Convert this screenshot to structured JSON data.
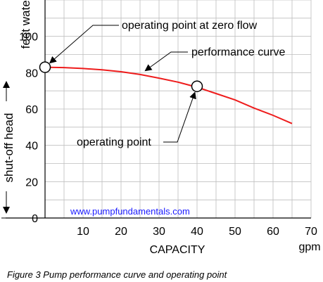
{
  "chart_data": {
    "type": "line",
    "title": "",
    "xlabel": "CAPACITY",
    "x_unit": "gpm",
    "ylabel_unit": "feet water",
    "side_label": "shut-off head",
    "xlim": [
      0,
      70
    ],
    "ylim": [
      0,
      120
    ],
    "x_ticks": [
      10,
      20,
      30,
      40,
      50,
      60,
      70
    ],
    "y_ticks": [
      0,
      20,
      40,
      60,
      80,
      100
    ],
    "grid": true,
    "series": [
      {
        "x": [
          0,
          5,
          10,
          15,
          20,
          25,
          30,
          35,
          40,
          45,
          50,
          55,
          60,
          65
        ],
        "y": [
          83,
          82.8,
          82.3,
          81.6,
          80.5,
          79,
          77,
          74.8,
          72,
          68.5,
          65,
          60.5,
          56.5,
          52
        ]
      }
    ],
    "points": [
      {
        "x": 0,
        "y": 83
      },
      {
        "x": 40,
        "y": 72.5
      }
    ],
    "annotations": [
      {
        "text": "operating point at zero flow",
        "target": [
          0,
          83
        ]
      },
      {
        "text": "performance curve",
        "target": [
          25,
          79
        ]
      },
      {
        "text": "operating point",
        "target": [
          40,
          72.5
        ]
      }
    ],
    "watermark": "www.pumpfundamentals.com",
    "caption": "Figure 3 Pump performance curve and operating point",
    "colors": {
      "curve": "#ee1c1c",
      "grid": "#bdbdbd",
      "watermark": "#1a1aff"
    }
  }
}
